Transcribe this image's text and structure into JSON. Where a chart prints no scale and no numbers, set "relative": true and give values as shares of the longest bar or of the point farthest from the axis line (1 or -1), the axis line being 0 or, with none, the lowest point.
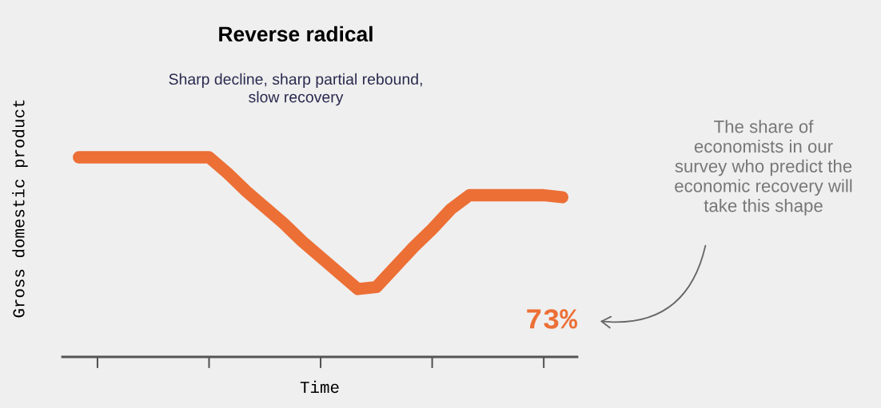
{
  "chart_data": {
    "type": "line",
    "title": "Reverse radical",
    "subtitle": "Sharp decline, sharp partial rebound,\nslow recovery",
    "xlabel": "Time",
    "ylabel": "Gross domestic product",
    "relative": true,
    "categories": [
      null,
      null,
      null,
      null,
      null,
      null,
      null,
      null,
      null,
      null,
      null,
      null,
      null,
      null,
      null,
      null,
      null,
      null,
      null,
      null,
      null,
      null,
      null,
      null,
      null,
      null,
      null
    ],
    "series": [
      {
        "color": "#ec6f36",
        "values": [
          1,
          1,
          1,
          1,
          1,
          1,
          1,
          1,
          0.92,
          0.83,
          0.75,
          0.67,
          0.58,
          0.5,
          0.42,
          0.34,
          0.35,
          0.45,
          0.55,
          0.64,
          0.74,
          0.81,
          0.81,
          0.81,
          0.81,
          0.81,
          0.8
        ]
      }
    ],
    "annotations": [
      "The share of\neconomists in our\nsurvey who predict the\neconomic recovery will\ntake this shape",
      "73%"
    ],
    "grid": false,
    "legend": false,
    "line_style": "solid"
  }
}
